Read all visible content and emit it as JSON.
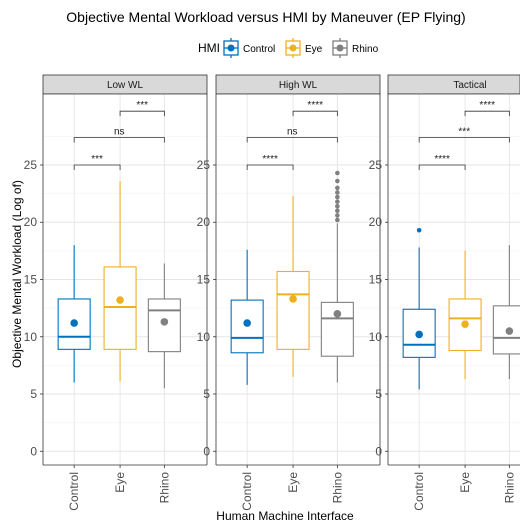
{
  "chart_data": {
    "type": "box",
    "title": "Objective Mental Workload versus HMI by Maneuver (EP Flying)",
    "xlabel": "Human Machine Interface",
    "ylabel": "Objective Mental Workload (Log of)",
    "ylim": [
      -1.2,
      31.2
    ],
    "yticks": [
      0,
      5,
      10,
      15,
      20,
      25
    ],
    "grid": true,
    "legend": {
      "title": "HMI",
      "position": "top",
      "entries": [
        "Control",
        "Eye",
        "Rhino"
      ]
    },
    "categories": [
      "Control",
      "Eye",
      "Rhino"
    ],
    "colors": {
      "Control": "#0072BD",
      "Eye": "#EDB120",
      "Rhino": "#808080"
    },
    "panels": [
      {
        "label": "Low WL",
        "boxes": [
          {
            "name": "Control",
            "whisker_low": 6.0,
            "q1": 8.9,
            "median": 10.0,
            "q3": 13.3,
            "whisker_high": 18.0,
            "mean": 11.2,
            "outliers": []
          },
          {
            "name": "Eye",
            "whisker_low": 6.1,
            "q1": 8.9,
            "median": 12.6,
            "q3": 16.1,
            "whisker_high": 23.6,
            "mean": 13.2,
            "outliers": []
          },
          {
            "name": "Rhino",
            "whisker_low": 5.5,
            "q1": 8.7,
            "median": 12.3,
            "q3": 13.3,
            "whisker_high": 16.4,
            "mean": 11.3,
            "outliers": []
          }
        ],
        "comparisons": [
          {
            "groups": [
              "Eye",
              "Rhino"
            ],
            "label": "***",
            "y": 29.7
          },
          {
            "groups": [
              "Control",
              "Rhino"
            ],
            "label": "ns",
            "y": 27.4
          },
          {
            "groups": [
              "Control",
              "Eye"
            ],
            "label": "***",
            "y": 25.0
          }
        ]
      },
      {
        "label": "High WL",
        "boxes": [
          {
            "name": "Control",
            "whisker_low": 5.8,
            "q1": 8.6,
            "median": 9.9,
            "q3": 13.2,
            "whisker_high": 17.6,
            "mean": 11.2,
            "outliers": []
          },
          {
            "name": "Eye",
            "whisker_low": 6.5,
            "q1": 8.9,
            "median": 13.7,
            "q3": 15.7,
            "whisker_high": 22.3,
            "mean": 13.3,
            "outliers": []
          },
          {
            "name": "Rhino",
            "whisker_low": 6.0,
            "q1": 8.3,
            "median": 11.6,
            "q3": 13.0,
            "whisker_high": 19.9,
            "mean": 12.0,
            "outliers": [
              20.2,
              20.6,
              21.0,
              21.4,
              21.8,
              22.2,
              22.6,
              23.0,
              23.6,
              24.3
            ]
          }
        ],
        "comparisons": [
          {
            "groups": [
              "Eye",
              "Rhino"
            ],
            "label": "****",
            "y": 29.7
          },
          {
            "groups": [
              "Control",
              "Rhino"
            ],
            "label": "ns",
            "y": 27.4
          },
          {
            "groups": [
              "Control",
              "Eye"
            ],
            "label": "****",
            "y": 25.0
          }
        ]
      },
      {
        "label": "Tactical",
        "boxes": [
          {
            "name": "Control",
            "whisker_low": 5.4,
            "q1": 8.2,
            "median": 9.3,
            "q3": 12.4,
            "whisker_high": 17.8,
            "mean": 10.2,
            "outliers": [
              19.3
            ]
          },
          {
            "name": "Eye",
            "whisker_low": 6.3,
            "q1": 8.8,
            "median": 11.6,
            "q3": 13.3,
            "whisker_high": 17.5,
            "mean": 11.1,
            "outliers": []
          },
          {
            "name": "Rhino",
            "whisker_low": 6.3,
            "q1": 8.5,
            "median": 9.9,
            "q3": 12.7,
            "whisker_high": 18.0,
            "mean": 10.5,
            "outliers": []
          }
        ],
        "comparisons": [
          {
            "groups": [
              "Eye",
              "Rhino"
            ],
            "label": "****",
            "y": 29.7
          },
          {
            "groups": [
              "Control",
              "Rhino"
            ],
            "label": "***",
            "y": 27.4
          },
          {
            "groups": [
              "Control",
              "Eye"
            ],
            "label": "****",
            "y": 25.0
          }
        ]
      }
    ]
  }
}
